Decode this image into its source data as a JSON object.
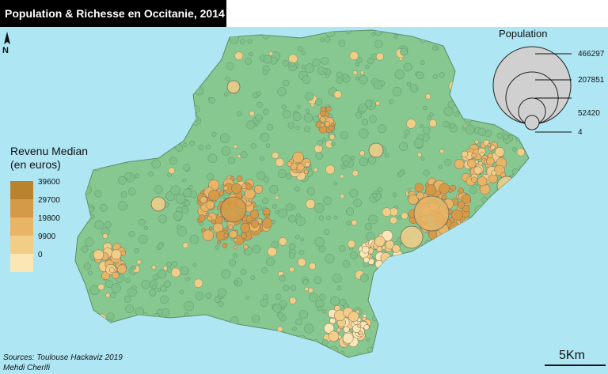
{
  "title": "Population & Richesse en Occitanie, 2014",
  "north_label": "N",
  "revenue_legend": {
    "title_line1": "Revenu Median",
    "title_line2": "(en euros)",
    "classes": [
      {
        "value": "39600",
        "color": "#b9822f"
      },
      {
        "value": "29700",
        "color": "#d59a47"
      },
      {
        "value": "19800",
        "color": "#e8b465"
      },
      {
        "value": "9900",
        "color": "#f2cd88"
      },
      {
        "value": "0",
        "color": "#fbe7b5"
      }
    ]
  },
  "population_legend": {
    "title": "Population",
    "values": [
      "466297",
      "207851",
      "52420",
      "4"
    ]
  },
  "sources": "Sources: Toulouse Hackaviz 2019",
  "author": "Mehdi Cherifi",
  "scale": "5Km",
  "colors": {
    "land": "#86c88f",
    "sea": "#aee6f4",
    "border": "#6e8f74",
    "circle_stroke": "#7a6a5a"
  }
}
